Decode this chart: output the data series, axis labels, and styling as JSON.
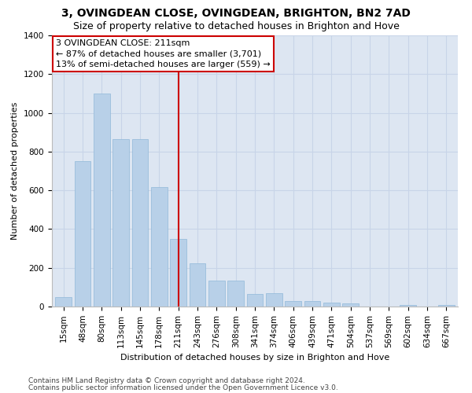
{
  "title": "3, OVINGDEAN CLOSE, OVINGDEAN, BRIGHTON, BN2 7AD",
  "subtitle": "Size of property relative to detached houses in Brighton and Hove",
  "xlabel": "Distribution of detached houses by size in Brighton and Hove",
  "ylabel": "Number of detached properties",
  "footer1": "Contains HM Land Registry data © Crown copyright and database right 2024.",
  "footer2": "Contains public sector information licensed under the Open Government Licence v3.0.",
  "categories": [
    "15sqm",
    "48sqm",
    "80sqm",
    "113sqm",
    "145sqm",
    "178sqm",
    "211sqm",
    "243sqm",
    "276sqm",
    "308sqm",
    "341sqm",
    "374sqm",
    "406sqm",
    "439sqm",
    "471sqm",
    "504sqm",
    "537sqm",
    "569sqm",
    "602sqm",
    "634sqm",
    "667sqm"
  ],
  "values": [
    50,
    750,
    1100,
    865,
    865,
    615,
    350,
    225,
    135,
    135,
    65,
    70,
    30,
    30,
    20,
    15,
    0,
    0,
    10,
    0,
    10
  ],
  "bar_color": "#b8d0e8",
  "bar_edge_color": "#90b8d8",
  "highlight_color": "#cc0000",
  "annotation_line1": "3 OVINGDEAN CLOSE: 211sqm",
  "annotation_line2": "← 87% of detached houses are smaller (3,701)",
  "annotation_line3": "13% of semi-detached houses are larger (559) →",
  "annotation_box_color": "#ffffff",
  "annotation_border_color": "#cc0000",
  "ylim": [
    0,
    1400
  ],
  "yticks": [
    0,
    200,
    400,
    600,
    800,
    1000,
    1200,
    1400
  ],
  "grid_color": "#c8d4e8",
  "bg_color": "#dde6f2",
  "title_fontsize": 10,
  "subtitle_fontsize": 9,
  "axis_label_fontsize": 8,
  "tick_fontsize": 7.5,
  "footer_fontsize": 6.5,
  "annotation_fontsize": 8
}
